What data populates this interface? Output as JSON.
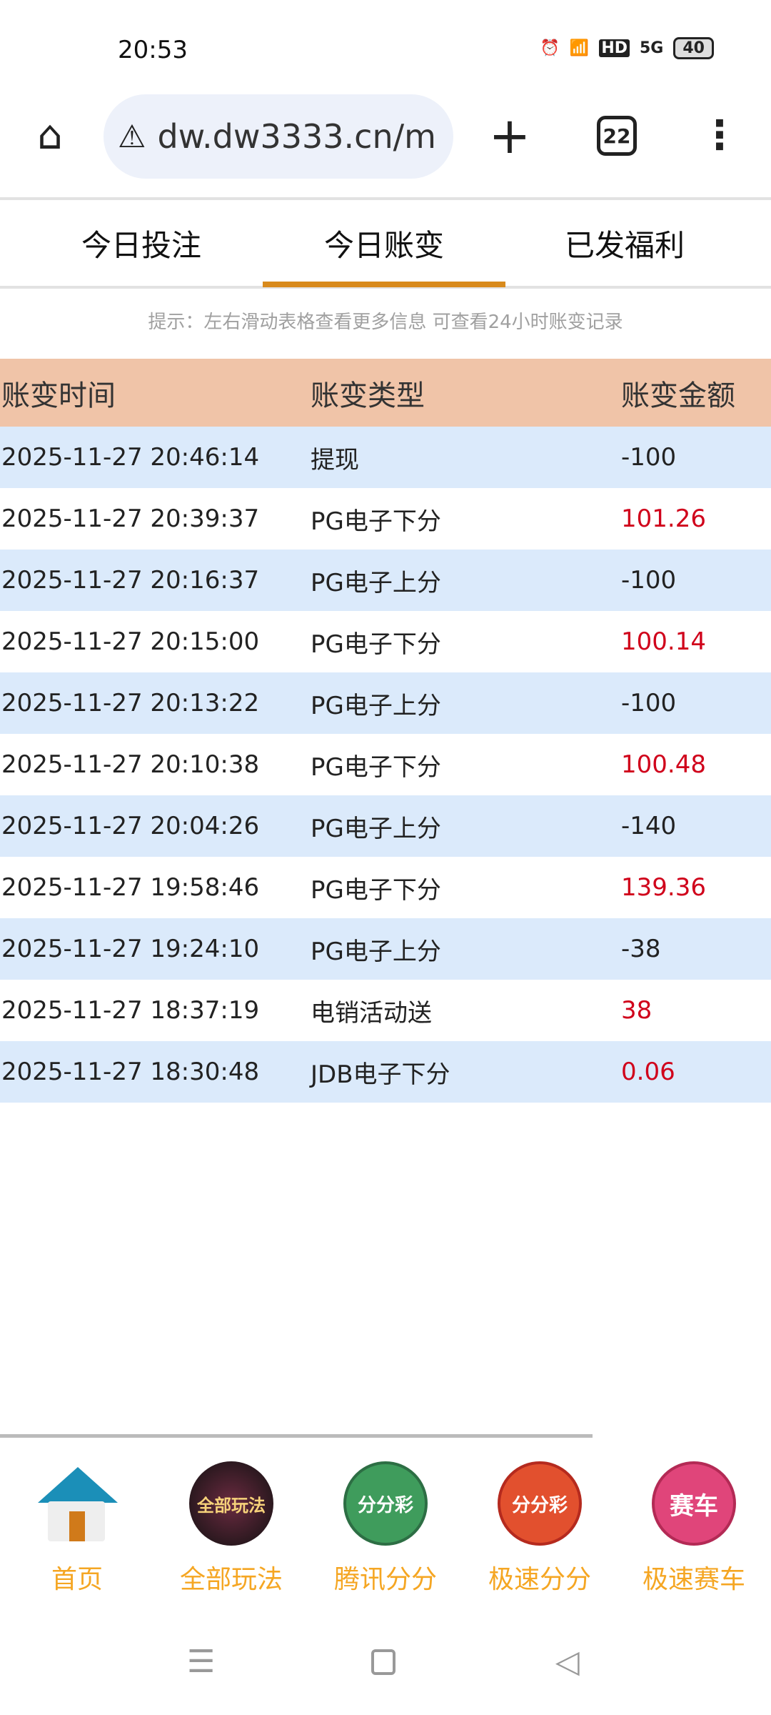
{
  "status": {
    "time": "20:53",
    "battery": "40",
    "network": "5G",
    "hd": "HD"
  },
  "browser": {
    "url": "dw.dw3333.cn/m",
    "tab_count": "22"
  },
  "tabs": [
    {
      "label": "今日投注"
    },
    {
      "label": "今日账变",
      "active": true
    },
    {
      "label": "已发福利"
    }
  ],
  "hint": "提示：左右滑动表格查看更多信息  可查看24小时账变记录",
  "table": {
    "headers": [
      "账变时间",
      "账变类型",
      "账变金额"
    ],
    "rows": [
      {
        "time": "2025-11-27 20:46:14",
        "type": "提现",
        "amount": "-100"
      },
      {
        "time": "2025-11-27 20:39:37",
        "type": "PG电子下分",
        "amount": "101.26"
      },
      {
        "time": "2025-11-27 20:16:37",
        "type": "PG电子上分",
        "amount": "-100"
      },
      {
        "time": "2025-11-27 20:15:00",
        "type": "PG电子下分",
        "amount": "100.14"
      },
      {
        "time": "2025-11-27 20:13:22",
        "type": "PG电子上分",
        "amount": "-100"
      },
      {
        "time": "2025-11-27 20:10:38",
        "type": "PG电子下分",
        "amount": "100.48"
      },
      {
        "time": "2025-11-27 20:04:26",
        "type": "PG电子上分",
        "amount": "-140"
      },
      {
        "time": "2025-11-27 19:58:46",
        "type": "PG电子下分",
        "amount": "139.36"
      },
      {
        "time": "2025-11-27 19:24:10",
        "type": "PG电子上分",
        "amount": "-38"
      },
      {
        "time": "2025-11-27 18:37:19",
        "type": "电销活动送",
        "amount": "38"
      },
      {
        "time": "2025-11-27 18:30:48",
        "type": "JDB电子下分",
        "amount": "0.06"
      }
    ]
  },
  "bottom_nav": [
    {
      "label": "首页",
      "icon": "home-icon"
    },
    {
      "label": "全部玩法",
      "icon": "all-games-icon",
      "badge": "全部玩法"
    },
    {
      "label": "腾讯分分",
      "icon": "fenfencai-green-icon",
      "badge": "分分彩"
    },
    {
      "label": "极速分分",
      "icon": "fenfencai-red-icon",
      "badge": "分分彩"
    },
    {
      "label": "极速赛车",
      "icon": "racing-flag-icon",
      "badge": "赛车"
    }
  ],
  "colors": {
    "accent": "#d88a1c",
    "header_bg": "#f0c4a8",
    "row_alt": "#dbeafb",
    "positive": "#d0021b",
    "nav_label": "#f5a623"
  }
}
